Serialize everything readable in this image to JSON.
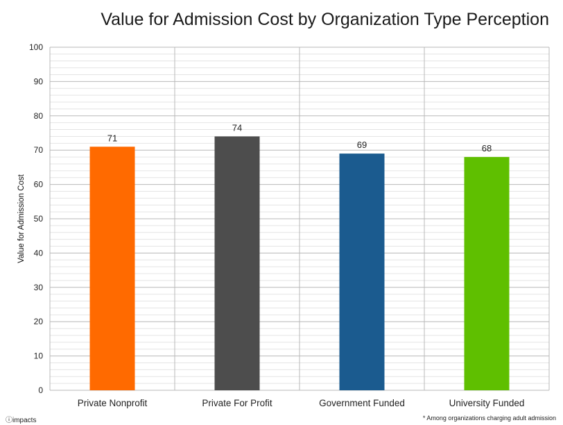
{
  "chart_data": {
    "type": "bar",
    "title": "Value for Admission Cost by Organization Type Perception",
    "xlabel": "",
    "ylabel": "Value for Admission Cost",
    "categories": [
      "Private Nonprofit",
      "Private For Profit",
      "Government Funded",
      "University Funded"
    ],
    "values": [
      71,
      74,
      69,
      68
    ],
    "colors": [
      "#ff6a00",
      "#4d4d4d",
      "#1b5b8f",
      "#5fbf00"
    ],
    "ylim": [
      0,
      100
    ],
    "yticks": [
      0,
      10,
      20,
      30,
      40,
      50,
      60,
      70,
      80,
      90,
      100
    ],
    "grid": true,
    "legend": "none"
  },
  "footnote": "* Among organizations charging adult admission",
  "logo_text": "impacts"
}
